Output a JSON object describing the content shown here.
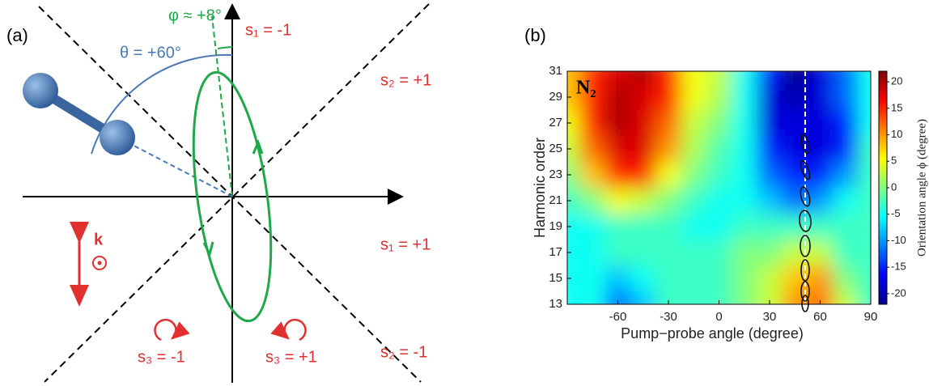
{
  "panel_a": {
    "label": "(a)",
    "theta_label": "θ = +60°",
    "phi_label": "φ ≈ +8°",
    "s1_top": "s₁ = -1",
    "s2_top": "s₂ = +1",
    "s1_right": "s₁ = +1",
    "s2_bottom": "s₂ = -1",
    "s3_left": "s₃ = -1",
    "s3_right": "s₃ = +1",
    "k_label": "k"
  },
  "chart_data": {
    "type": "heatmap",
    "label": "(b)",
    "annotation": "N₂",
    "x": [
      -90,
      -75,
      -60,
      -45,
      -30,
      -15,
      0,
      15,
      30,
      45,
      60,
      75,
      90
    ],
    "y": [
      31,
      29,
      27,
      25,
      23,
      21,
      19,
      17,
      15,
      13
    ],
    "values": [
      [
        8,
        15,
        18,
        20,
        15,
        5,
        3,
        -5,
        -15,
        -22,
        -18,
        -12,
        -5
      ],
      [
        8,
        15,
        20,
        18,
        15,
        5,
        2,
        -5,
        -18,
        -20,
        -18,
        -12,
        -5
      ],
      [
        5,
        15,
        20,
        18,
        12,
        3,
        0,
        -5,
        -18,
        -18,
        -18,
        -15,
        -5
      ],
      [
        3,
        12,
        18,
        18,
        10,
        2,
        -2,
        -5,
        -15,
        -18,
        -18,
        -15,
        -3
      ],
      [
        0,
        8,
        15,
        15,
        5,
        0,
        -3,
        -5,
        -12,
        -15,
        -15,
        -10,
        -3
      ],
      [
        -3,
        0,
        5,
        3,
        0,
        -3,
        -5,
        -5,
        -8,
        -12,
        -10,
        -5,
        -3
      ],
      [
        -5,
        -5,
        -3,
        -3,
        -3,
        -5,
        -5,
        -3,
        -3,
        -3,
        -3,
        -3,
        -3
      ],
      [
        -5,
        -5,
        -3,
        -3,
        -3,
        -3,
        -3,
        0,
        0,
        3,
        3,
        -3,
        -3
      ],
      [
        -5,
        -5,
        -8,
        -5,
        -3,
        -3,
        -3,
        0,
        3,
        8,
        10,
        0,
        -3
      ],
      [
        -5,
        -5,
        -12,
        -8,
        -3,
        -3,
        -3,
        0,
        3,
        10,
        12,
        3,
        -3
      ]
    ],
    "xlim": [
      -90,
      90
    ],
    "ylim": [
      13,
      31
    ],
    "xticks": [
      -60,
      -30,
      0,
      30,
      60,
      90
    ],
    "yticks": [
      13,
      15,
      17,
      19,
      21,
      23,
      25,
      27,
      29,
      31
    ],
    "xlabel": "Pump−probe angle (degree)",
    "ylabel": "Harmonic order",
    "colorbar": {
      "label": "Orientation angle ϕ (degree)",
      "lim": [
        -22,
        22
      ],
      "ticks": [
        -20,
        -15,
        -10,
        -5,
        0,
        5,
        10,
        15,
        20
      ]
    }
  }
}
